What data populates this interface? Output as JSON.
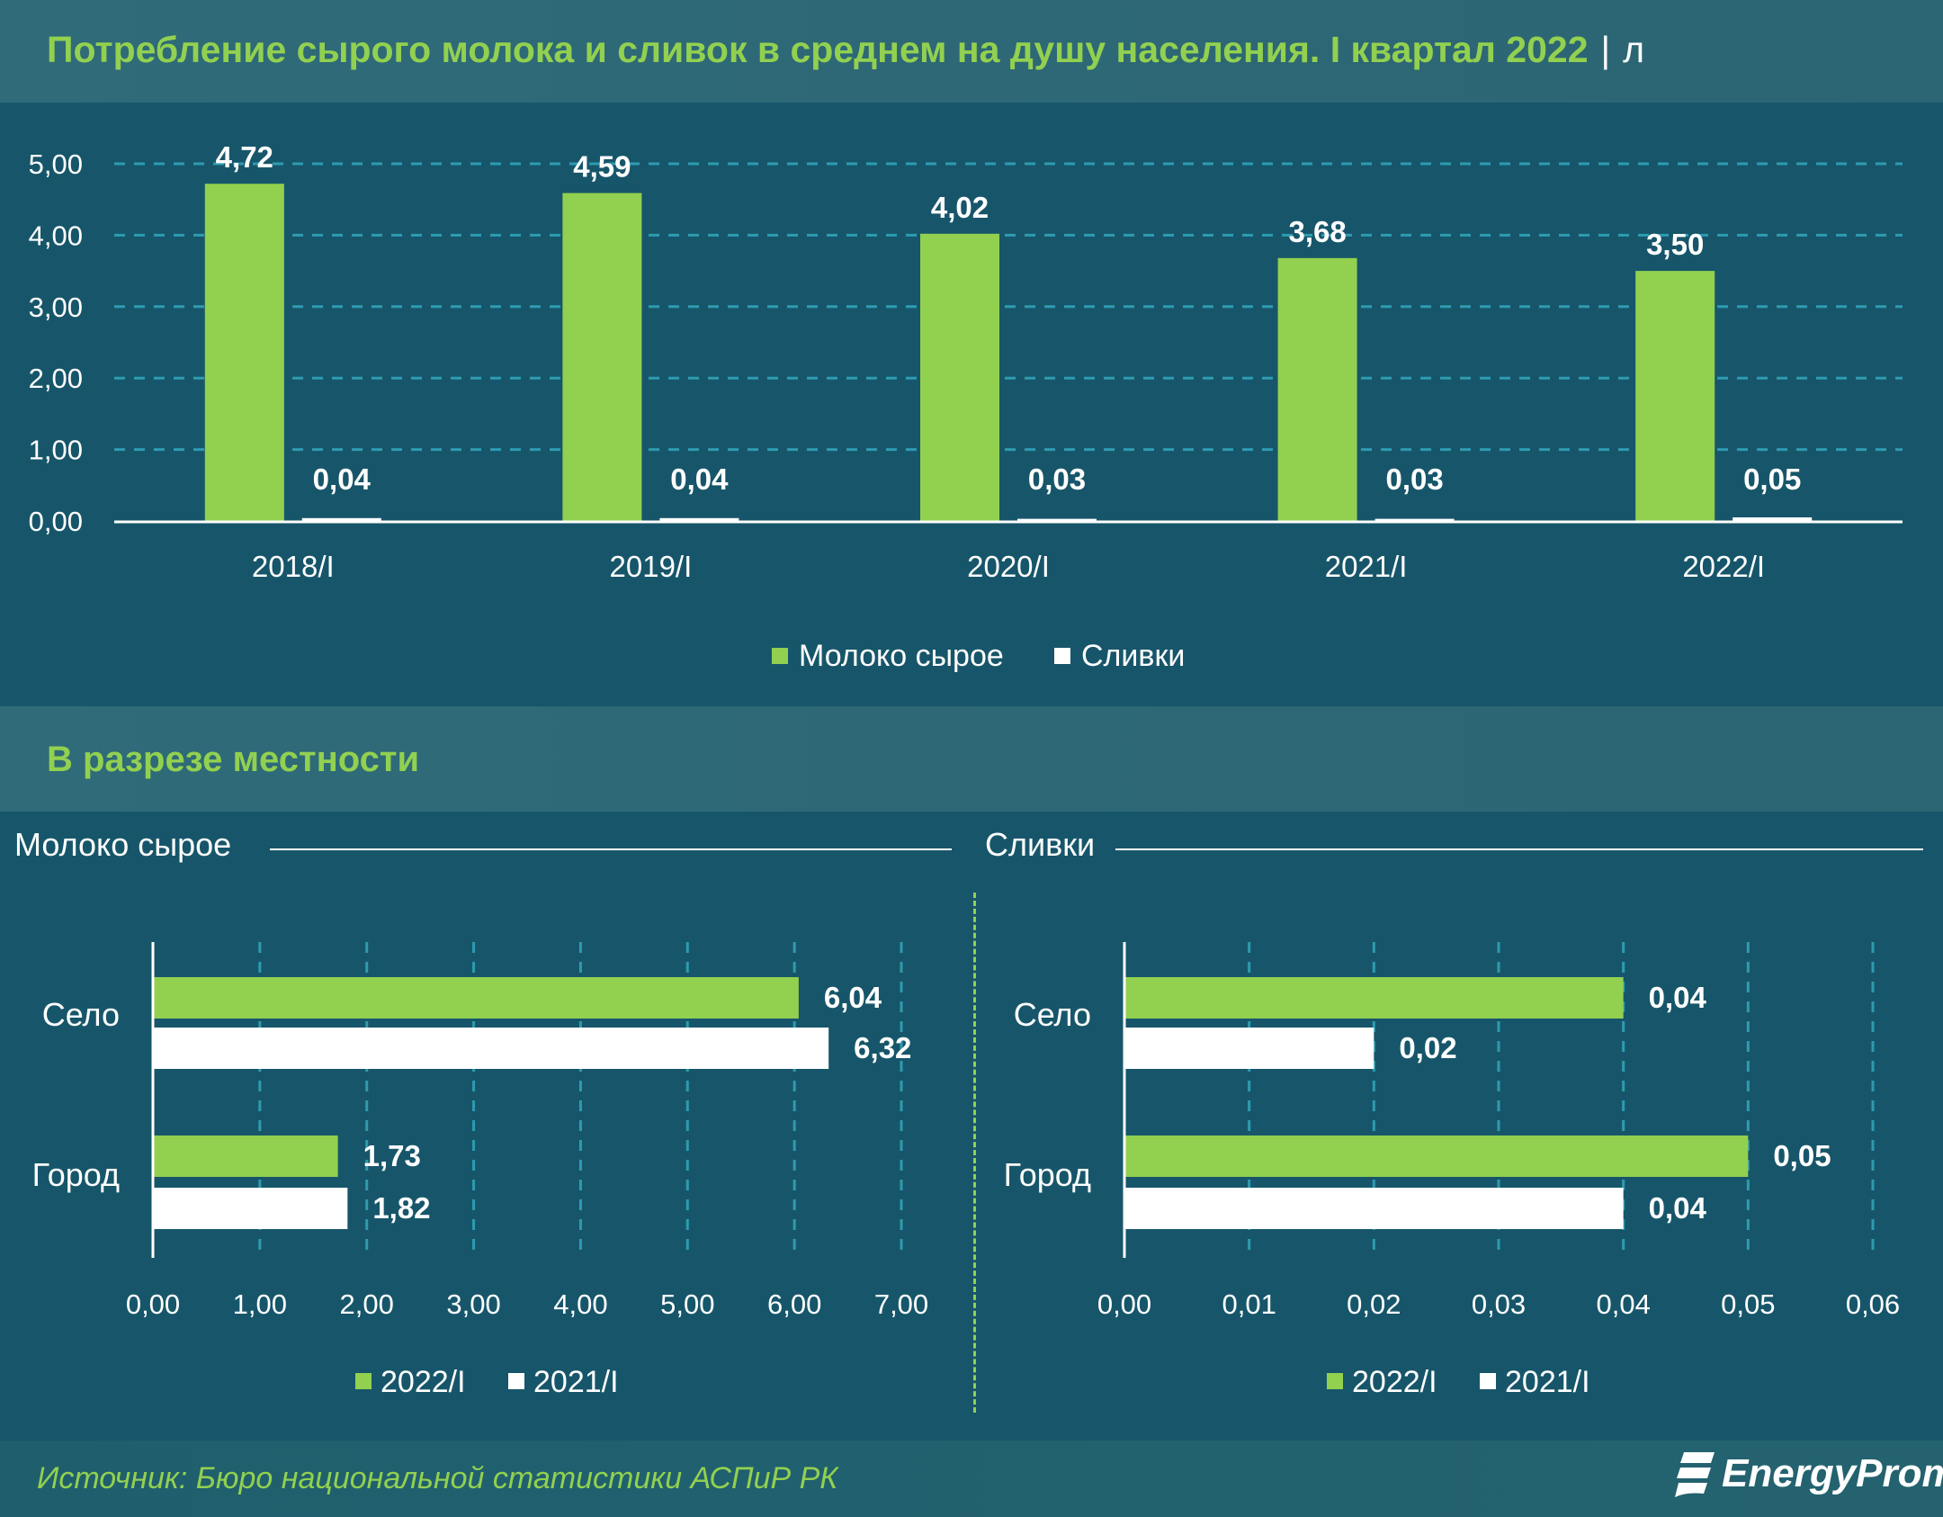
{
  "header": {
    "title": "Потребление сырого молока и сливок в среднем на душу населения. I квартал 2022",
    "unit": "л"
  },
  "section": {
    "title": "В разрезе местности"
  },
  "footer": {
    "source": "Источник: Бюро национальной статистики АСПиР РК",
    "logo": "EnergyProm"
  },
  "colors": {
    "green": "#92d050",
    "white": "#ffffff",
    "background": "#17566a",
    "band": "#2e6a78"
  },
  "chart_data": [
    {
      "type": "bar",
      "categories": [
        "2018/I",
        "2019/I",
        "2020/I",
        "2021/I",
        "2022/I"
      ],
      "series": [
        {
          "name": "Молоко сырое",
          "values": [
            4.72,
            4.59,
            4.02,
            3.68,
            3.5
          ],
          "labels": [
            "4,72",
            "4,59",
            "4,02",
            "3,68",
            "3,50"
          ],
          "color": "#92d050"
        },
        {
          "name": "Сливки",
          "values": [
            0.04,
            0.04,
            0.03,
            0.03,
            0.05
          ],
          "labels": [
            "0,04",
            "0,04",
            "0,03",
            "0,03",
            "0,05"
          ],
          "color": "#ffffff"
        }
      ],
      "ylim": [
        0,
        5
      ],
      "yticks": [
        "0,00",
        "1,00",
        "2,00",
        "3,00",
        "4,00",
        "5,00"
      ],
      "grid": true,
      "legend": "bottom"
    },
    {
      "type": "bar",
      "orientation": "horizontal",
      "title": "Молоко сырое",
      "categories": [
        "Село",
        "Город"
      ],
      "series": [
        {
          "name": "2022/I",
          "values": [
            6.04,
            1.73
          ],
          "labels": [
            "6,04",
            "1,73"
          ],
          "color": "#92d050"
        },
        {
          "name": "2021/I",
          "values": [
            6.32,
            1.82
          ],
          "labels": [
            "6,32",
            "1,82"
          ],
          "color": "#ffffff"
        }
      ],
      "xlim": [
        0,
        7
      ],
      "xticks": [
        "0,00",
        "1,00",
        "2,00",
        "3,00",
        "4,00",
        "5,00",
        "6,00",
        "7,00"
      ],
      "grid": true,
      "legend": "bottom"
    },
    {
      "type": "bar",
      "orientation": "horizontal",
      "title": "Сливки",
      "categories": [
        "Село",
        "Город"
      ],
      "series": [
        {
          "name": "2022/I",
          "values": [
            0.04,
            0.05
          ],
          "labels": [
            "0,04",
            "0,05"
          ],
          "color": "#92d050"
        },
        {
          "name": "2021/I",
          "values": [
            0.02,
            0.04
          ],
          "labels": [
            "0,02",
            "0,04"
          ],
          "color": "#ffffff"
        }
      ],
      "xlim": [
        0,
        0.06
      ],
      "xticks": [
        "0,00",
        "0,01",
        "0,02",
        "0,03",
        "0,04",
        "0,05",
        "0,06"
      ],
      "grid": true,
      "legend": "bottom"
    }
  ]
}
